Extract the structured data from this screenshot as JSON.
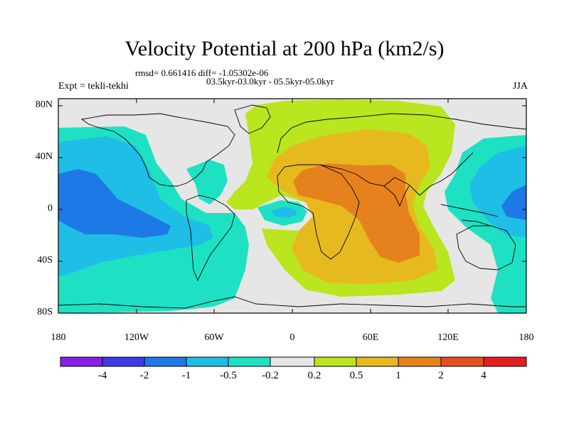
{
  "title": "Velocity Potential at 200 hPa (km2/s)",
  "stats": "rmsd= 0.661416 diff= -1.05302e-06",
  "period": "03.5kyr-03.0kyr - 05.5kyr-05.0kyr",
  "experiment": "Expt = tekli-tekhi",
  "season": "JJA",
  "map": {
    "lat_ticks": [
      "80N",
      "40N",
      "0",
      "40S",
      "80S"
    ],
    "lon_ticks": [
      "180",
      "120W",
      "60W",
      "0",
      "60E",
      "120E",
      "180"
    ]
  },
  "colorbar": {
    "labels": [
      "-4",
      "-2",
      "-1",
      "-0.5",
      "-0.2",
      "0.2",
      "0.5",
      "1",
      "2",
      "4"
    ],
    "colors": [
      "#8a1ee6",
      "#3c3ce6",
      "#1e78e6",
      "#1ebee6",
      "#1ee1c3",
      "#e6e6e6",
      "#b9e61e",
      "#e6b91e",
      "#e6821e",
      "#e6501e",
      "#e61e1e"
    ]
  }
}
